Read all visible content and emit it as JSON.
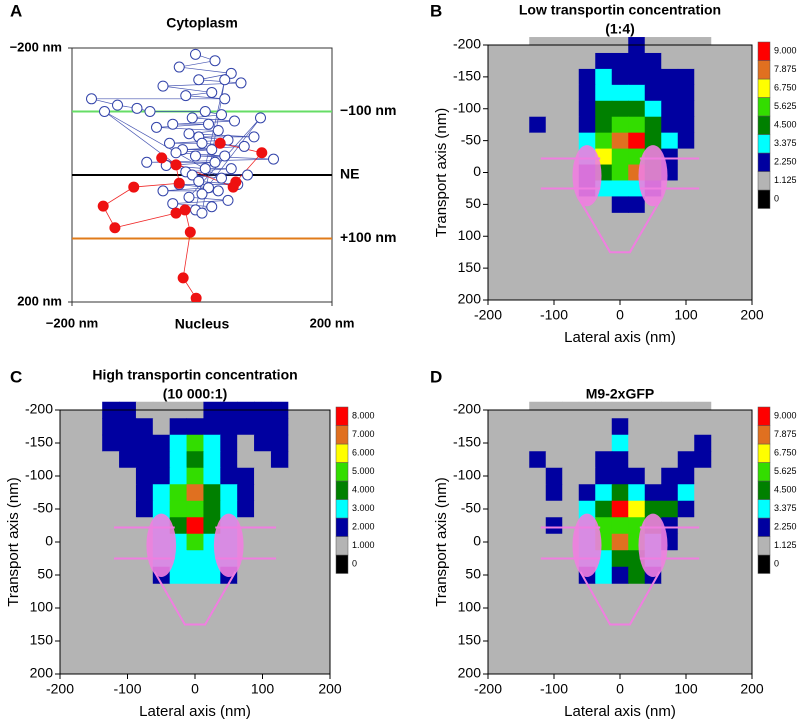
{
  "chart_data": [
    {
      "type": "scatter",
      "panel_label": "A",
      "xlim": [
        -200,
        200
      ],
      "ylim": [
        -200,
        200
      ],
      "y_inverted": true,
      "xticks": [
        {
          "value": -200,
          "label": "−200 nm"
        },
        {
          "value": 200,
          "label": "200 nm"
        }
      ],
      "yticks": [
        {
          "value": -200,
          "label": "−200 nm"
        },
        {
          "value": 200,
          "label": "200 nm"
        }
      ],
      "top_label": {
        "text": "Cytoplasm",
        "color": "#5ddc5d"
      },
      "bottom_label": {
        "text": "Nucleus",
        "color": "#e07b1a"
      },
      "reference_lines": [
        {
          "value": -100,
          "label": "−100 nm",
          "color": "#66dd66"
        },
        {
          "value": 0,
          "label": "NE",
          "color": "#000000"
        },
        {
          "value": 100,
          "label": "+100 nm",
          "color": "#e07b1a"
        }
      ],
      "series": [
        {
          "color": "#3344aa",
          "x": [
            -10,
            20,
            -35,
            45,
            -5,
            60,
            -60,
            15,
            -25,
            35,
            -170,
            -130,
            -100,
            -80,
            5,
            30,
            -15,
            50,
            -45,
            10,
            -70,
            25,
            -20,
            80,
            -5,
            40,
            -50,
            0,
            65,
            -30,
            15,
            -40,
            35,
            -10,
            110,
            -85,
            20,
            -55,
            5,
            45,
            -25,
            70,
            -15,
            30,
            -150,
            -5,
            55,
            -35,
            10,
            -60,
            25,
            0,
            90,
            -20,
            40,
            -45,
            15,
            -10,
            35,
            0
          ],
          "y": [
            -190,
            -180,
            -170,
            -160,
            -150,
            -145,
            -140,
            -130,
            -125,
            -120,
            -120,
            -110,
            -105,
            -100,
            -100,
            -95,
            -90,
            -85,
            -80,
            -80,
            -75,
            -70,
            -65,
            -60,
            -60,
            -55,
            -50,
            -50,
            -45,
            -40,
            -40,
            -35,
            -30,
            -30,
            -25,
            -20,
            -20,
            -15,
            -10,
            -10,
            -5,
            0,
            0,
            5,
            -100,
            10,
            15,
            15,
            20,
            25,
            25,
            30,
            -90,
            35,
            40,
            45,
            50,
            55,
            -150,
            60
          ]
        },
        {
          "color": "#ee1111",
          "x": [
            28,
            92,
            52,
            48,
            -62,
            -40,
            -35,
            -105,
            -152,
            -134,
            -40,
            -26,
            -18,
            -29,
            -9
          ],
          "y": [
            -50,
            -35,
            11,
            19,
            -27,
            -16,
            13,
            19,
            49,
            83,
            60,
            55,
            90,
            162,
            194
          ]
        }
      ]
    },
    {
      "type": "contour",
      "panel_label": "B",
      "title": "Low transportin concentration",
      "subtitle": "(1:4)",
      "x_label": "Lateral axis (nm)",
      "y_label": "Transport axis (nm)",
      "xlim": [
        -200,
        200
      ],
      "ylim": [
        -200,
        200
      ],
      "y_inverted": true,
      "xticks": [
        -200,
        -100,
        0,
        100,
        200
      ],
      "yticks": [
        -200,
        -150,
        -100,
        -50,
        0,
        50,
        100,
        150,
        200
      ],
      "levels": [
        0,
        1.125,
        {
          "value": 2.25,
          "label": "2.250"
        },
        3.375,
        {
          "value": 4.5,
          "label": "4.500"
        },
        5.625,
        {
          "value": 6.75,
          "label": "6.750"
        },
        7.875,
        {
          "value": 9,
          "label": "9.000"
        }
      ],
      "colors": [
        "#000000",
        "#b4b4b4",
        "#0000a0",
        "#00ffff",
        "#008000",
        "#33dd00",
        "#ffff00",
        "#e07020",
        "#ff0000"
      ],
      "x": [
        -125,
        -100,
        -75,
        -50,
        -25,
        0,
        25,
        50,
        75,
        100,
        125
      ],
      "y": [
        -200,
        -175,
        -150,
        -125,
        -100,
        -75,
        -50,
        -25,
        0,
        25,
        50
      ],
      "z": [
        [
          0,
          0,
          0,
          0,
          0,
          0,
          1.5,
          0,
          0,
          0,
          0
        ],
        [
          0,
          0,
          0,
          0,
          1.5,
          2,
          1.5,
          1.5,
          0,
          0,
          0
        ],
        [
          0,
          0,
          0,
          1.5,
          2.5,
          1.5,
          1.5,
          2,
          1.5,
          1.5,
          0
        ],
        [
          0,
          0,
          0,
          1.5,
          3,
          2.5,
          3,
          2,
          1.5,
          1.5,
          0
        ],
        [
          0,
          0,
          0,
          2,
          3.5,
          4,
          4,
          3,
          2,
          1.5,
          0
        ],
        [
          1.5,
          0,
          0,
          2,
          4,
          5,
          5,
          4,
          2,
          1.5,
          0
        ],
        [
          0,
          0,
          0,
          2.5,
          5,
          7,
          9,
          4.5,
          2.5,
          1.5,
          0
        ],
        [
          0,
          0,
          0,
          2.5,
          6,
          5,
          5,
          4,
          2,
          0,
          0
        ],
        [
          0,
          0,
          0,
          2,
          4,
          5,
          7,
          3.5,
          1.5,
          0,
          0
        ],
        [
          0,
          0,
          0,
          1.5,
          2.5,
          3,
          3,
          2,
          0,
          0,
          0
        ],
        [
          0,
          0,
          0,
          0,
          0,
          1.5,
          1.5,
          0,
          0,
          0,
          0
        ]
      ]
    },
    {
      "type": "contour",
      "panel_label": "C",
      "title": "High transportin concentration",
      "subtitle": "(10 000:1)",
      "x_label": "Lateral axis (nm)",
      "y_label": "Transport axis (nm)",
      "xlim": [
        -200,
        200
      ],
      "ylim": [
        -200,
        200
      ],
      "y_inverted": true,
      "xticks": [
        -200,
        -100,
        0,
        100,
        200
      ],
      "yticks": [
        -200,
        -150,
        -100,
        -50,
        0,
        50,
        100,
        150,
        200
      ],
      "levels": [
        0,
        {
          "value": 1,
          "label": "1.000"
        },
        {
          "value": 2,
          "label": "2.000"
        },
        {
          "value": 3,
          "label": "3.000"
        },
        {
          "value": 4,
          "label": "4.000"
        },
        {
          "value": 5,
          "label": "5.000"
        },
        {
          "value": 6,
          "label": "6.000"
        },
        {
          "value": 7,
          "label": "7.000"
        },
        {
          "value": 8,
          "label": "8.000"
        }
      ],
      "colors": [
        "#000000",
        "#b4b4b4",
        "#0000a0",
        "#00ffff",
        "#008000",
        "#33dd00",
        "#ffff00",
        "#e07020",
        "#ff0000"
      ],
      "x": [
        -125,
        -100,
        -75,
        -50,
        -25,
        0,
        25,
        50,
        75,
        100,
        125
      ],
      "y": [
        -200,
        -175,
        -150,
        -125,
        -100,
        -75,
        -50,
        -25,
        0,
        25,
        50
      ],
      "z": [
        [
          1.5,
          1.5,
          0,
          0,
          0,
          0,
          1.5,
          1.5,
          1.5,
          1.5,
          1.5
        ],
        [
          1.5,
          1.5,
          1.5,
          0,
          1.5,
          1.5,
          1.5,
          1.5,
          1.5,
          1.5,
          1.5
        ],
        [
          1.5,
          1.5,
          1.5,
          1.5,
          2.5,
          4.5,
          2.5,
          1.5,
          0,
          1.5,
          1.5
        ],
        [
          0,
          1.5,
          1.5,
          1.5,
          2.5,
          3.5,
          2.5,
          1.5,
          0,
          0,
          1.5
        ],
        [
          0,
          0,
          1.5,
          1.5,
          3,
          4.5,
          3,
          1.5,
          1.5,
          0,
          0
        ],
        [
          0,
          0,
          1.5,
          2.5,
          4.5,
          6.5,
          4,
          2.5,
          1.5,
          0,
          0
        ],
        [
          0,
          0,
          1.5,
          2.5,
          4.5,
          5,
          4,
          2.5,
          1.5,
          0,
          0
        ],
        [
          0,
          0,
          0,
          2.5,
          4,
          7.5,
          4,
          2.5,
          0,
          0,
          0
        ],
        [
          0,
          0,
          0,
          2.5,
          3,
          4.5,
          3,
          2.5,
          0,
          0,
          0
        ],
        [
          0,
          0,
          0,
          2.5,
          2.5,
          2.5,
          2.5,
          2.5,
          0,
          0,
          0
        ],
        [
          0,
          0,
          0,
          1.5,
          2.5,
          2.5,
          2.5,
          1.5,
          0,
          0,
          0
        ]
      ]
    },
    {
      "type": "contour",
      "panel_label": "D",
      "title": "M9-2xGFP",
      "x_label": "Lateral axis (nm)",
      "y_label": "Transport axis (nm)",
      "xlim": [
        -200,
        200
      ],
      "ylim": [
        -200,
        200
      ],
      "y_inverted": true,
      "xticks": [
        -200,
        -100,
        0,
        100,
        200
      ],
      "yticks": [
        -200,
        -150,
        -100,
        -50,
        0,
        50,
        100,
        150,
        200
      ],
      "levels": [
        0,
        1.125,
        {
          "value": 2.25,
          "label": "2.250"
        },
        3.375,
        {
          "value": 4.5,
          "label": "4.500"
        },
        5.625,
        {
          "value": 6.75,
          "label": "6.750"
        },
        7.875,
        {
          "value": 9,
          "label": "9.000"
        }
      ],
      "colors": [
        "#000000",
        "#b4b4b4",
        "#0000a0",
        "#00ffff",
        "#008000",
        "#33dd00",
        "#ffff00",
        "#e07020",
        "#ff0000"
      ],
      "x": [
        -125,
        -100,
        -75,
        -50,
        -25,
        0,
        25,
        50,
        75,
        100,
        125
      ],
      "y": [
        -200,
        -175,
        -150,
        -125,
        -100,
        -75,
        -50,
        -25,
        0,
        25,
        50
      ],
      "z": [
        [
          0,
          0,
          0,
          0,
          0,
          0,
          0,
          0,
          0,
          0,
          0
        ],
        [
          0,
          0,
          0,
          0,
          0,
          1.5,
          0,
          0,
          0,
          0,
          0
        ],
        [
          0,
          0,
          0,
          0,
          0,
          3,
          0,
          0,
          0,
          0,
          1.5
        ],
        [
          1.5,
          0,
          0,
          0,
          1.5,
          2,
          0,
          0,
          0,
          1.5,
          1.5
        ],
        [
          0,
          1.5,
          0,
          0,
          1.5,
          2,
          1.5,
          0,
          1.5,
          2,
          0
        ],
        [
          0,
          1.5,
          0,
          2,
          3,
          3.5,
          3,
          2,
          2,
          3,
          0
        ],
        [
          0,
          0,
          0,
          2.5,
          4.5,
          8,
          6,
          3.5,
          4,
          1.5,
          0
        ],
        [
          0,
          1.5,
          0,
          2.5,
          5,
          5,
          5,
          4,
          1.5,
          0,
          0
        ],
        [
          0,
          0,
          0,
          2.5,
          5,
          7,
          5,
          3,
          1.5,
          0,
          0
        ],
        [
          0,
          0,
          0,
          2.5,
          3,
          3.5,
          4,
          3,
          0,
          0,
          0
        ],
        [
          0,
          0,
          0,
          1.5,
          2.5,
          2,
          4,
          2,
          0,
          0,
          0
        ]
      ]
    }
  ]
}
